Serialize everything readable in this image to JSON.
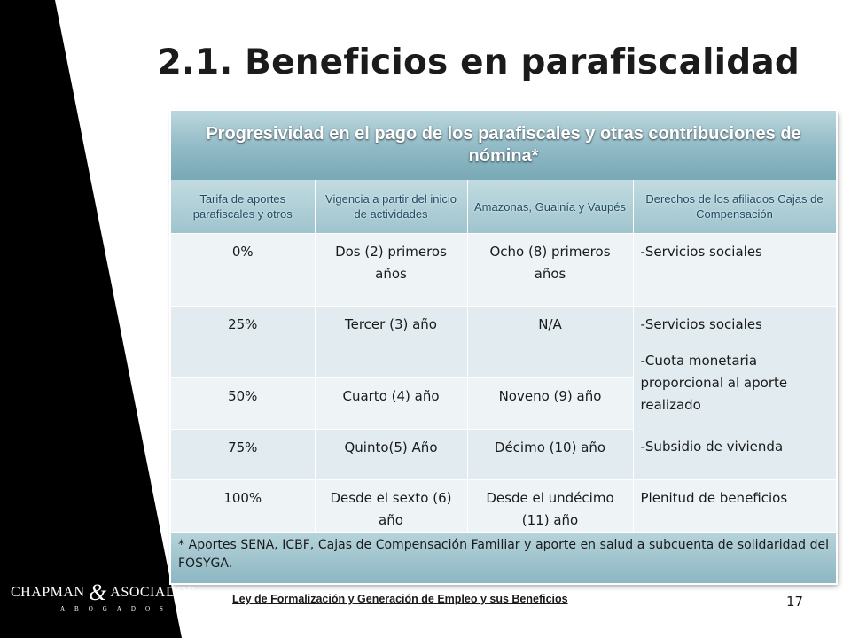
{
  "slide": {
    "title": "2.1. Beneficios en parafiscalidad",
    "page_number": "17",
    "bottom_link": "Ley de Formalización y Generación de Empleo y sus Beneficios"
  },
  "logo": {
    "name_left": "CHAPMAN",
    "ampersand": "&",
    "name_right": "ASOCIADOS",
    "subtitle": "ABOGADOS"
  },
  "table": {
    "title": "Progresividad en el pago de los parafiscales y otras contribuciones de nómina*",
    "headers": [
      "Tarifa de aportes parafiscales y otros",
      "Vigencia a partir del inicio de actividades",
      "Amazonas, Guainía y Vaupés",
      "Derechos de los afiliados Cajas de Compensación"
    ],
    "rows": [
      {
        "tarifa": "0%",
        "vigencia": "Dos (2) primeros años",
        "amazonas": "Ocho (8) primeros años",
        "derechos": "-Servicios sociales"
      },
      {
        "tarifa": "25%",
        "vigencia": "Tercer (3) año",
        "amazonas": "N/A"
      },
      {
        "tarifa": "50%",
        "vigencia": "Cuarto (4) año",
        "amazonas": "Noveno (9) año"
      },
      {
        "tarifa": "75%",
        "vigencia": "Quinto(5) Año",
        "amazonas": "Décimo (10) año"
      },
      {
        "tarifa": "100%",
        "vigencia": "Desde el sexto (6) año",
        "amazonas": "Desde el undécimo (11) año",
        "derechos": "Plenitud de beneficios"
      }
    ],
    "merged_derechos": {
      "line1": "-Servicios sociales",
      "line2": "-Cuota monetaria proporcional al aporte realizado",
      "line3": "-Subsidio de vivienda"
    },
    "footnote": "* Aportes SENA, ICBF, Cajas de Compensación Familiar y aporte en salud a subcuenta de solidaridad del FOSYGA."
  },
  "colors": {
    "left_band": "#000000",
    "header_band": "#8fb9c5",
    "header_text": "#ffffff",
    "column_header_text": "#1c4b63",
    "cell_light": "#eef4f6",
    "cell_dark": "#e2ecf0"
  }
}
